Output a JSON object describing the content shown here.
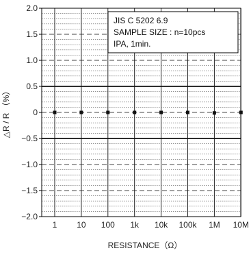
{
  "chart_data": {
    "type": "scatter",
    "categories": [
      "1",
      "10",
      "100",
      "1k",
      "10k",
      "100k",
      "1M",
      "10M"
    ],
    "values": [
      0,
      0,
      0,
      0,
      0,
      0,
      -0.01,
      0
    ],
    "ylim": [
      -2.0,
      2.0
    ],
    "yticks": [
      "2.0",
      "1.5",
      "1.0",
      "0.5",
      "0",
      "−0.5",
      "−1.0",
      "−1.5",
      "−2.0"
    ],
    "ytick_values": [
      2.0,
      1.5,
      1.0,
      0.5,
      0,
      -0.5,
      -1.0,
      -1.5,
      -2.0
    ],
    "xlabel": "RESISTANCE（Ω）",
    "ylabel": "△R / R （%）",
    "limit_lines": [
      0.5,
      -0.5
    ],
    "grid": true,
    "annotation": [
      "JIS C 5202 6.9",
      "SAMPLE SIZE : n=10pcs",
      "IPA, 1min."
    ]
  }
}
